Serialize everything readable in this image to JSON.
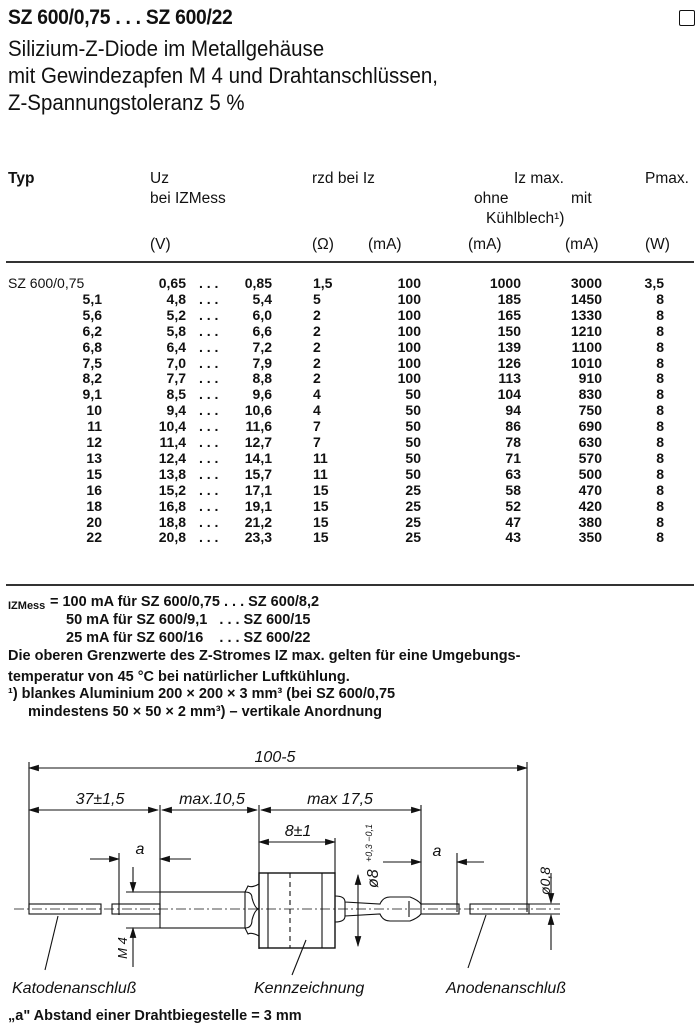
{
  "header": {
    "title": "SZ 600/0,75 . . . SZ 600/22",
    "subtitle_lines": [
      "Silizium-Z-Diode im Metallgehäuse",
      "mit Gewindezapfen M 4 und Drahtanschlüssen,",
      "Z-Spannungstoleranz 5 %"
    ]
  },
  "table": {
    "headers": {
      "typ": "Typ",
      "uz": "Uz",
      "uz_sub": "bei IZMess",
      "rzd": "rzd bei Iz",
      "iz_max": "Iz max.",
      "ohne": "ohne",
      "mit": "mit",
      "kuehlblech": "Kühlblech¹)",
      "pmax": "Pmax."
    },
    "units": [
      "(V)",
      "(Ω)",
      "(mA)",
      "(mA)",
      "(mA)",
      "(W)"
    ],
    "rows": [
      {
        "typ": "SZ 600/0,75",
        "uz_min": "0,65",
        "uz_max": "0,85",
        "rzd": "1,5",
        "iz": "100",
        "ohne": "1000",
        "mit": "3000",
        "pmax": "3,5"
      },
      {
        "typ": "5,1",
        "uz_min": "4,8",
        "uz_max": "5,4",
        "rzd": "5",
        "iz": "100",
        "ohne": "185",
        "mit": "1450",
        "pmax": "8"
      },
      {
        "typ": "5,6",
        "uz_min": "5,2",
        "uz_max": "6,0",
        "rzd": "2",
        "iz": "100",
        "ohne": "165",
        "mit": "1330",
        "pmax": "8"
      },
      {
        "typ": "6,2",
        "uz_min": "5,8",
        "uz_max": "6,6",
        "rzd": "2",
        "iz": "100",
        "ohne": "150",
        "mit": "1210",
        "pmax": "8"
      },
      {
        "typ": "6,8",
        "uz_min": "6,4",
        "uz_max": "7,2",
        "rzd": "2",
        "iz": "100",
        "ohne": "139",
        "mit": "1100",
        "pmax": "8"
      },
      {
        "typ": "7,5",
        "uz_min": "7,0",
        "uz_max": "7,9",
        "rzd": "2",
        "iz": "100",
        "ohne": "126",
        "mit": "1010",
        "pmax": "8"
      },
      {
        "typ": "8,2",
        "uz_min": "7,7",
        "uz_max": "8,8",
        "rzd": "2",
        "iz": "100",
        "ohne": "113",
        "mit": "910",
        "pmax": "8"
      },
      {
        "typ": "9,1",
        "uz_min": "8,5",
        "uz_max": "9,6",
        "rzd": "4",
        "iz": "50",
        "ohne": "104",
        "mit": "830",
        "pmax": "8"
      },
      {
        "typ": "10",
        "uz_min": "9,4",
        "uz_max": "10,6",
        "rzd": "4",
        "iz": "50",
        "ohne": "94",
        "mit": "750",
        "pmax": "8"
      },
      {
        "typ": "11",
        "uz_min": "10,4",
        "uz_max": "11,6",
        "rzd": "7",
        "iz": "50",
        "ohne": "86",
        "mit": "690",
        "pmax": "8"
      },
      {
        "typ": "12",
        "uz_min": "11,4",
        "uz_max": "12,7",
        "rzd": "7",
        "iz": "50",
        "ohne": "78",
        "mit": "630",
        "pmax": "8"
      },
      {
        "typ": "13",
        "uz_min": "12,4",
        "uz_max": "14,1",
        "rzd": "11",
        "iz": "50",
        "ohne": "71",
        "mit": "570",
        "pmax": "8"
      },
      {
        "typ": "15",
        "uz_min": "13,8",
        "uz_max": "15,7",
        "rzd": "11",
        "iz": "50",
        "ohne": "63",
        "mit": "500",
        "pmax": "8"
      },
      {
        "typ": "16",
        "uz_min": "15,2",
        "uz_max": "17,1",
        "rzd": "15",
        "iz": "25",
        "ohne": "58",
        "mit": "470",
        "pmax": "8"
      },
      {
        "typ": "18",
        "uz_min": "16,8",
        "uz_max": "19,1",
        "rzd": "15",
        "iz": "25",
        "ohne": "52",
        "mit": "420",
        "pmax": "8"
      },
      {
        "typ": "20",
        "uz_min": "18,8",
        "uz_max": "21,2",
        "rzd": "15",
        "iz": "25",
        "ohne": "47",
        "mit": "380",
        "pmax": "8"
      },
      {
        "typ": "22",
        "uz_min": "20,8",
        "uz_max": "23,3",
        "rzd": "15",
        "iz": "25",
        "ohne": "43",
        "mit": "350",
        "pmax": "8"
      }
    ]
  },
  "notes": {
    "izmess_label": "IZMess",
    "izmess_lines": [
      "= 100 mA für SZ 600/0,75 . . . SZ 600/8,2",
      "50 mA für SZ 600/9,1   . . . SZ 600/15",
      "25 mA für SZ 600/16    . . . SZ 600/22"
    ],
    "limit_line1": "Die oberen Grenzwerte des Z-Stromes IZ max. gelten für eine Umgebungs-",
    "limit_line2": "temperatur von 45 °C bei natürlicher Luftkühlung.",
    "footnote_line1": "¹)  blankes Aluminium 200 × 200 × 3 mm³ (bei SZ 600/0,75",
    "footnote_line2": "mindestens 50 × 50 × 2 mm³) – vertikale Anordnung"
  },
  "drawing": {
    "dim_total": "100-5",
    "dim_cathode_wire": "37±1,5",
    "dim_thread": "max.10,5",
    "dim_body": "max 17,5",
    "dim_hex": "8±1",
    "dim_a": "a",
    "dim_thread_size": "M 4",
    "dim_diameter": "ø8",
    "dim_diameter_tol": "+0,3 −0,1",
    "dim_wire": "ø0,8",
    "label_cathode": "Katodenanschluß",
    "label_marking": "Kennzeichnung",
    "label_anode": "Anodenanschluß",
    "footnote": "„a\" Abstand einer Drahtbiegestelle = 3 mm"
  }
}
